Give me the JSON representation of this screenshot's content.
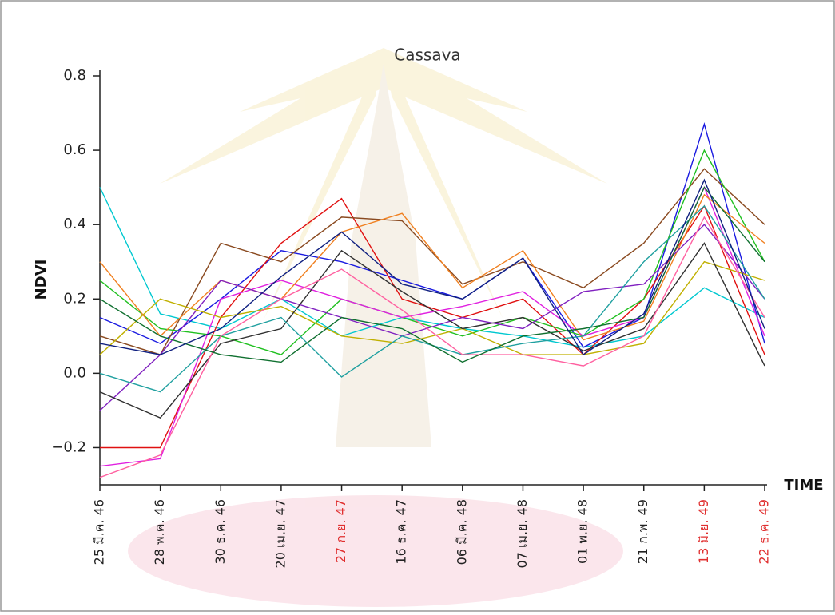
{
  "chart_data": {
    "type": "line",
    "title": "Cassava",
    "y_label": "NDVI",
    "x_label": "TIME",
    "categories": [
      "25 มี.ค. 46",
      "28 พ.ค. 46",
      "30 ธ.ค. 46",
      "20 เม.ย. 47",
      "27 ก.ย. 47",
      "16 ธ.ค. 47",
      "06 มี.ค. 48",
      "07 เม.ย. 48",
      "01 พ.ย. 48",
      "21 ก.พ. 49",
      "13 มิ.ย. 49",
      "22 ธ.ค. 49"
    ],
    "category_colors": [
      "#222222",
      "#222222",
      "#222222",
      "#222222",
      "#e03030",
      "#222222",
      "#222222",
      "#222222",
      "#222222",
      "#222222",
      "#e03030",
      "#e03030"
    ],
    "ylim": [
      -0.3,
      0.8
    ],
    "yticks": [
      {
        "value": -0.2,
        "label": "−0.2"
      },
      {
        "value": 0,
        "label": "0.0"
      },
      0.2,
      0.4,
      0.6,
      0.8
    ],
    "grid": false,
    "series": [
      {
        "color": "#00c8d0",
        "values": [
          0.5,
          0.16,
          0.12,
          0.2,
          0.1,
          0.15,
          0.12,
          0.1,
          0.07,
          0.1,
          0.23,
          0.15
        ]
      },
      {
        "color": "#1a1ae0",
        "values": [
          0.15,
          0.08,
          0.2,
          0.33,
          0.3,
          0.25,
          0.2,
          0.31,
          0.07,
          0.15,
          0.67,
          0.08
        ]
      },
      {
        "color": "#e01010",
        "values": [
          -0.2,
          -0.2,
          0.15,
          0.35,
          0.47,
          0.2,
          0.15,
          0.2,
          0.05,
          0.2,
          0.45,
          0.05
        ]
      },
      {
        "color": "#8a4a20",
        "values": [
          0.1,
          0.05,
          0.35,
          0.3,
          0.42,
          0.41,
          0.24,
          0.3,
          0.23,
          0.35,
          0.55,
          0.4
        ]
      },
      {
        "color": "#20c020",
        "values": [
          0.25,
          0.12,
          0.1,
          0.05,
          0.2,
          0.15,
          0.1,
          0.15,
          0.1,
          0.2,
          0.6,
          0.3
        ]
      },
      {
        "color": "#e020e0",
        "values": [
          -0.25,
          -0.23,
          0.2,
          0.25,
          0.2,
          0.15,
          0.18,
          0.22,
          0.1,
          0.15,
          0.5,
          0.1
        ]
      },
      {
        "color": "#f08020",
        "values": [
          0.3,
          0.1,
          0.25,
          0.2,
          0.38,
          0.43,
          0.23,
          0.33,
          0.09,
          0.14,
          0.48,
          0.35
        ]
      },
      {
        "color": "#8020c0",
        "values": [
          -0.1,
          0.05,
          0.25,
          0.2,
          0.15,
          0.1,
          0.15,
          0.12,
          0.22,
          0.24,
          0.4,
          0.2
        ]
      },
      {
        "color": "#c0b000",
        "values": [
          0.05,
          0.2,
          0.15,
          0.18,
          0.1,
          0.08,
          0.12,
          0.05,
          0.05,
          0.08,
          0.3,
          0.25
        ]
      },
      {
        "color": "#303030",
        "values": [
          -0.05,
          -0.12,
          0.08,
          0.12,
          0.33,
          0.22,
          0.12,
          0.15,
          0.06,
          0.12,
          0.35,
          0.02
        ]
      },
      {
        "color": "#20a0a0",
        "values": [
          0.0,
          -0.05,
          0.1,
          0.15,
          -0.01,
          0.1,
          0.05,
          0.08,
          0.1,
          0.3,
          0.45,
          0.2
        ]
      },
      {
        "color": "#ff60a0",
        "values": [
          -0.28,
          -0.22,
          0.1,
          0.2,
          0.28,
          0.17,
          0.05,
          0.05,
          0.02,
          0.1,
          0.42,
          0.15
        ]
      },
      {
        "color": "#107030",
        "values": [
          0.2,
          0.1,
          0.05,
          0.03,
          0.15,
          0.12,
          0.03,
          0.1,
          0.12,
          0.15,
          0.5,
          0.3
        ]
      },
      {
        "color": "#102080",
        "values": [
          0.08,
          0.05,
          0.12,
          0.26,
          0.38,
          0.24,
          0.2,
          0.31,
          0.05,
          0.16,
          0.52,
          0.12
        ]
      }
    ]
  }
}
